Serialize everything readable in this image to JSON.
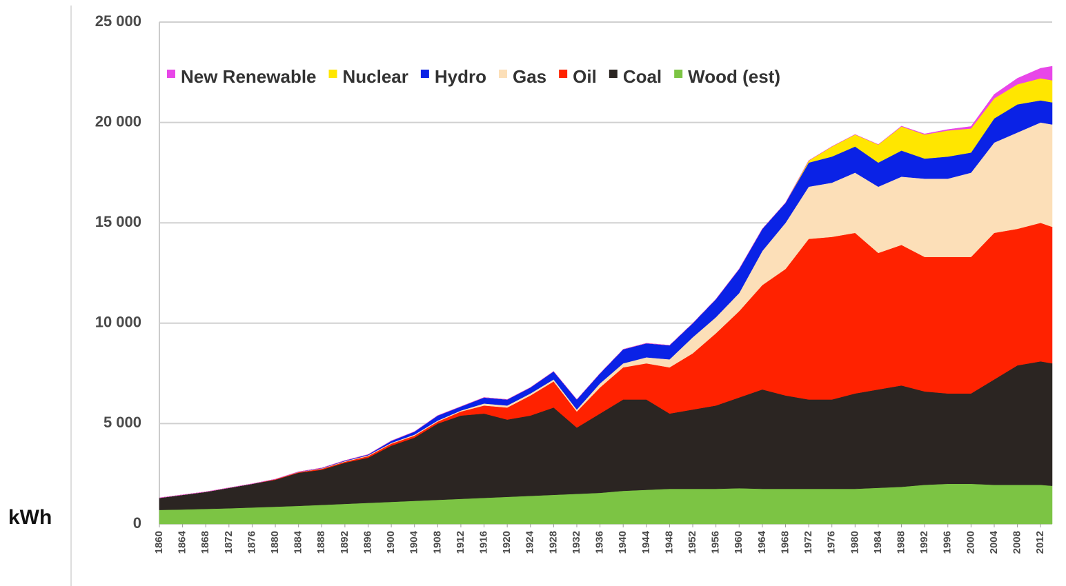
{
  "chart_data": {
    "type": "stacked_area",
    "y_label": "kWh",
    "x": [
      1860,
      1864,
      1868,
      1872,
      1876,
      1880,
      1884,
      1888,
      1892,
      1896,
      1900,
      1904,
      1908,
      1912,
      1916,
      1920,
      1924,
      1928,
      1932,
      1936,
      1940,
      1944,
      1948,
      1952,
      1956,
      1960,
      1964,
      1968,
      1972,
      1976,
      1980,
      1984,
      1988,
      1992,
      1996,
      2000,
      2004,
      2008,
      2012,
      2014
    ],
    "xlim": [
      1860,
      2014
    ],
    "xticks": [
      1860,
      1864,
      1868,
      1872,
      1876,
      1880,
      1884,
      1888,
      1892,
      1896,
      1900,
      1904,
      1908,
      1912,
      1916,
      1920,
      1924,
      1928,
      1932,
      1936,
      1940,
      1944,
      1948,
      1952,
      1956,
      1960,
      1964,
      1968,
      1972,
      1976,
      1980,
      1984,
      1988,
      1992,
      1996,
      2000,
      2004,
      2008,
      2012
    ],
    "ylim": [
      0,
      25000
    ],
    "yticks": [
      {
        "value": 0,
        "label": "0"
      },
      {
        "value": 5000,
        "label": "5 000"
      },
      {
        "value": 10000,
        "label": "10 000"
      },
      {
        "value": 15000,
        "label": "15 000"
      },
      {
        "value": 20000,
        "label": "20 000"
      },
      {
        "value": 25000,
        "label": "25 000"
      }
    ],
    "grid": true,
    "legend": "top",
    "series": [
      {
        "name": "Wood (est)",
        "color": "#7cc444",
        "values": [
          700,
          720,
          750,
          780,
          820,
          860,
          900,
          950,
          1000,
          1050,
          1100,
          1150,
          1200,
          1250,
          1300,
          1350,
          1400,
          1450,
          1500,
          1550,
          1650,
          1700,
          1750,
          1750,
          1750,
          1780,
          1750,
          1750,
          1750,
          1750,
          1750,
          1800,
          1850,
          1950,
          2000,
          2000,
          1950,
          1950,
          1950,
          1900
        ]
      },
      {
        "name": "Coal",
        "color": "#2b2522",
        "values": [
          600,
          730,
          850,
          1020,
          1180,
          1340,
          1650,
          1750,
          2050,
          2250,
          2800,
          3150,
          3800,
          4150,
          4200,
          3850,
          4000,
          4350,
          3300,
          3950,
          4550,
          4500,
          3750,
          3950,
          4150,
          4520,
          4950,
          4650,
          4450,
          4450,
          4750,
          4900,
          5050,
          4650,
          4500,
          4500,
          5250,
          5950,
          6150,
          6100
        ]
      },
      {
        "name": "Oil",
        "color": "#ff2200",
        "values": [
          0,
          0,
          0,
          0,
          0,
          30,
          30,
          50,
          50,
          80,
          100,
          100,
          100,
          200,
          400,
          600,
          1000,
          1300,
          800,
          1300,
          1600,
          1800,
          2300,
          2800,
          3600,
          4300,
          5200,
          6300,
          8000,
          8100,
          8000,
          6800,
          7000,
          6700,
          6800,
          6800,
          7300,
          6800,
          6900,
          6800
        ]
      },
      {
        "name": "Gas",
        "color": "#fcdfb8",
        "values": [
          0,
          0,
          0,
          0,
          0,
          0,
          10,
          20,
          30,
          40,
          40,
          50,
          50,
          50,
          100,
          100,
          100,
          100,
          100,
          200,
          200,
          300,
          400,
          800,
          800,
          900,
          1700,
          2300,
          2600,
          2700,
          3000,
          3300,
          3400,
          3900,
          3900,
          4200,
          4500,
          4800,
          5000,
          5100
        ]
      },
      {
        "name": "Hydro",
        "color": "#0a22e6",
        "values": [
          0,
          0,
          0,
          0,
          0,
          0,
          10,
          20,
          30,
          40,
          100,
          150,
          250,
          200,
          300,
          300,
          300,
          400,
          500,
          500,
          700,
          700,
          700,
          700,
          900,
          1200,
          1100,
          1000,
          1200,
          1300,
          1300,
          1200,
          1300,
          1000,
          1100,
          1000,
          1200,
          1400,
          1100,
          1100
        ]
      },
      {
        "name": "Nuclear",
        "color": "#ffe600",
        "values": [
          0,
          0,
          0,
          0,
          0,
          0,
          0,
          0,
          0,
          0,
          0,
          0,
          0,
          0,
          0,
          0,
          0,
          0,
          0,
          0,
          0,
          0,
          0,
          0,
          0,
          0,
          0,
          0,
          100,
          500,
          600,
          900,
          1200,
          1200,
          1300,
          1200,
          1000,
          1000,
          1100,
          1100
        ]
      },
      {
        "name": "New Renewable",
        "color": "#e846e8",
        "values": [
          0,
          0,
          0,
          0,
          0,
          0,
          0,
          0,
          0,
          0,
          0,
          0,
          0,
          0,
          0,
          0,
          0,
          0,
          0,
          0,
          0,
          0,
          0,
          0,
          0,
          0,
          0,
          0,
          0,
          0,
          0,
          0,
          20,
          30,
          50,
          100,
          200,
          300,
          500,
          700
        ]
      }
    ]
  }
}
